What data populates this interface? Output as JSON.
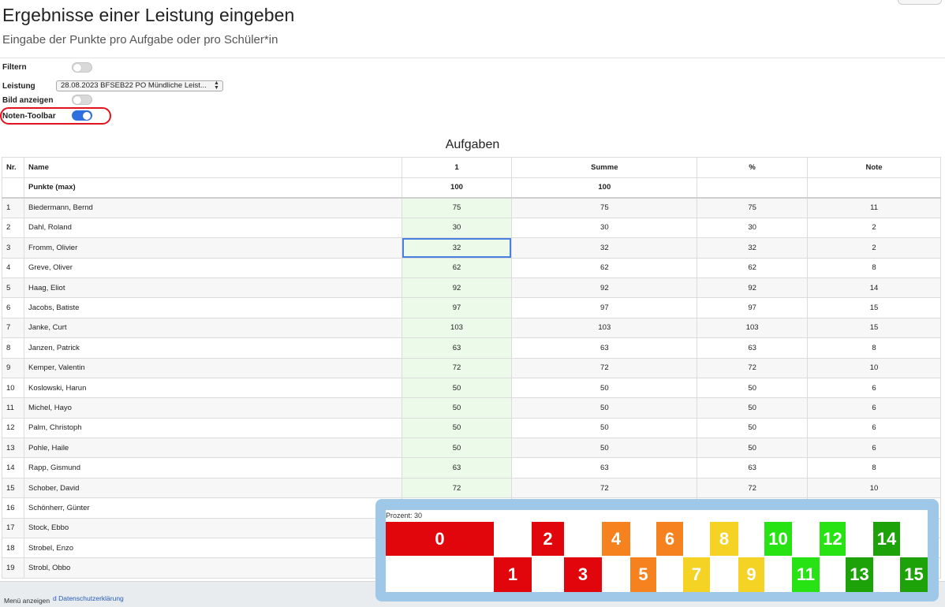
{
  "header": {
    "title": "Ergebnisse einer Leistung eingeben",
    "subtitle": "Eingabe der Punkte pro Aufgabe oder pro Schüler*in"
  },
  "controls": {
    "filter_label": "Filtern",
    "leistung_label": "Leistung",
    "leistung_value": "28.08.2023 BFSEB22 PO Mündliche Leist...",
    "bild_label": "Bild anzeigen",
    "noten_toolbar_label": "Noten-Toolbar",
    "filter_on": false,
    "bild_on": false,
    "noten_toolbar_on": true
  },
  "table": {
    "title": "Aufgaben",
    "headers": [
      "Nr.",
      "Name",
      "1",
      "Summe",
      "%",
      "Note"
    ],
    "max_row": {
      "label": "Punkte (max)",
      "task1": "100",
      "sum": "100"
    },
    "rows": [
      {
        "nr": "1",
        "name": "Biedermann, Bernd",
        "t1": "75",
        "sum": "75",
        "pct": "75",
        "note": "11"
      },
      {
        "nr": "2",
        "name": "Dahl, Roland",
        "t1": "30",
        "sum": "30",
        "pct": "30",
        "note": "2"
      },
      {
        "nr": "3",
        "name": "Fromm, Olivier",
        "t1": "32",
        "sum": "32",
        "pct": "32",
        "note": "2"
      },
      {
        "nr": "4",
        "name": "Greve, Oliver",
        "t1": "62",
        "sum": "62",
        "pct": "62",
        "note": "8"
      },
      {
        "nr": "5",
        "name": "Haag, Eliot",
        "t1": "92",
        "sum": "92",
        "pct": "92",
        "note": "14"
      },
      {
        "nr": "6",
        "name": "Jacobs, Batiste",
        "t1": "97",
        "sum": "97",
        "pct": "97",
        "note": "15"
      },
      {
        "nr": "7",
        "name": "Janke, Curt",
        "t1": "103",
        "sum": "103",
        "pct": "103",
        "note": "15"
      },
      {
        "nr": "8",
        "name": "Janzen, Patrick",
        "t1": "63",
        "sum": "63",
        "pct": "63",
        "note": "8"
      },
      {
        "nr": "9",
        "name": "Kemper, Valentin",
        "t1": "72",
        "sum": "72",
        "pct": "72",
        "note": "10"
      },
      {
        "nr": "10",
        "name": "Koslowski, Harun",
        "t1": "50",
        "sum": "50",
        "pct": "50",
        "note": "6"
      },
      {
        "nr": "11",
        "name": "Michel, Hayo",
        "t1": "50",
        "sum": "50",
        "pct": "50",
        "note": "6"
      },
      {
        "nr": "12",
        "name": "Palm, Christoph",
        "t1": "50",
        "sum": "50",
        "pct": "50",
        "note": "6"
      },
      {
        "nr": "13",
        "name": "Pohle, Haile",
        "t1": "50",
        "sum": "50",
        "pct": "50",
        "note": "6"
      },
      {
        "nr": "14",
        "name": "Rapp, Gismund",
        "t1": "63",
        "sum": "63",
        "pct": "63",
        "note": "8"
      },
      {
        "nr": "15",
        "name": "Schober, David",
        "t1": "72",
        "sum": "72",
        "pct": "72",
        "note": "10"
      },
      {
        "nr": "16",
        "name": "Schönherr, Günter",
        "t1": "",
        "sum": "",
        "pct": "",
        "note": ""
      },
      {
        "nr": "17",
        "name": "Stock, Ebbo",
        "t1": "",
        "sum": "",
        "pct": "",
        "note": ""
      },
      {
        "nr": "18",
        "name": "Strobel, Enzo",
        "t1": "",
        "sum": "",
        "pct": "",
        "note": ""
      },
      {
        "nr": "19",
        "name": "Strobl, Obbo",
        "t1": "",
        "sum": "",
        "pct": "",
        "note": ""
      }
    ]
  },
  "grade_toolbar": {
    "percent_label": "Prozent: 30",
    "grades": [
      {
        "label": "0",
        "color": "#e0060c"
      },
      {
        "label": "1",
        "color": "#e0060c"
      },
      {
        "label": "2",
        "color": "#e0060c"
      },
      {
        "label": "3",
        "color": "#e0060c"
      },
      {
        "label": "4",
        "color": "#f5821e"
      },
      {
        "label": "5",
        "color": "#f5821e"
      },
      {
        "label": "6",
        "color": "#f5821e"
      },
      {
        "label": "7",
        "color": "#f4d325"
      },
      {
        "label": "8",
        "color": "#f4d325"
      },
      {
        "label": "9",
        "color": "#f4d325"
      },
      {
        "label": "10",
        "color": "#27e313"
      },
      {
        "label": "11",
        "color": "#27e313"
      },
      {
        "label": "12",
        "color": "#27e313"
      },
      {
        "label": "13",
        "color": "#1ea20a"
      },
      {
        "label": "14",
        "color": "#1ea20a"
      },
      {
        "label": "15",
        "color": "#1ea20a"
      }
    ]
  },
  "footer": {
    "menu_label": "Menü anzeigen",
    "privacy_link": "d Datenschutzerklärung"
  }
}
